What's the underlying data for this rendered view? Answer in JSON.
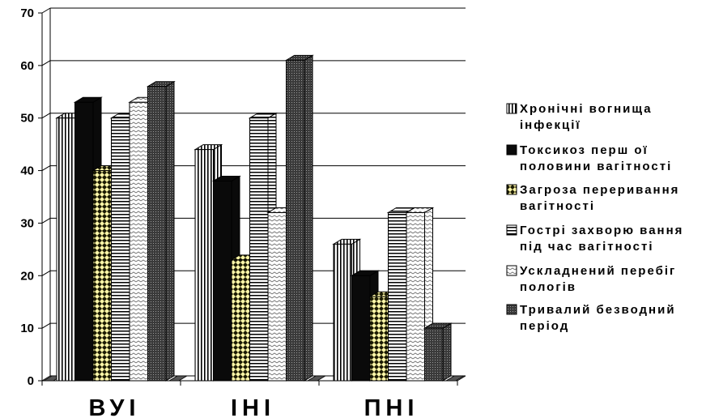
{
  "chart_data": {
    "type": "bar",
    "categories": [
      "ВУІ",
      "ІНІ",
      "ПНІ"
    ],
    "ylim": [
      0,
      70
    ],
    "yticks": [
      0,
      10,
      20,
      30,
      40,
      50,
      60,
      70
    ],
    "grid": true,
    "legend_position": "right",
    "series": [
      {
        "name": "Хронічні вогнища інфекції",
        "legend_lines": [
          "Хронічні вогнища",
          "інфекції"
        ],
        "values": [
          50,
          44,
          26
        ],
        "pattern": "vertical-stripes"
      },
      {
        "name": "Токсикоз першої половини вагітності",
        "legend_lines": [
          "Токсикоз перш ої",
          "половини вагітності"
        ],
        "values": [
          53,
          38,
          20
        ],
        "pattern": "solid-black"
      },
      {
        "name": "Загроза переривання вагітності",
        "legend_lines": [
          "Загроза переривання",
          "вагітності"
        ],
        "values": [
          40,
          23,
          16
        ],
        "pattern": "yellow-checker"
      },
      {
        "name": "Гострі захворювання під час вагітності",
        "legend_lines": [
          "Гострі захворю вання",
          "під час вагітності"
        ],
        "values": [
          50,
          50,
          32
        ],
        "pattern": "horizontal-stripes"
      },
      {
        "name": "Ускладнений перебіг пологів",
        "legend_lines": [
          "Ускладнений перебіг",
          "пологів"
        ],
        "values": [
          53,
          32,
          32
        ],
        "pattern": "zigzag"
      },
      {
        "name": "Тривалий безводний період",
        "legend_lines": [
          "Тривалий безводний",
          "період"
        ],
        "values": [
          56,
          61,
          10
        ],
        "pattern": "dark-dots"
      }
    ]
  }
}
